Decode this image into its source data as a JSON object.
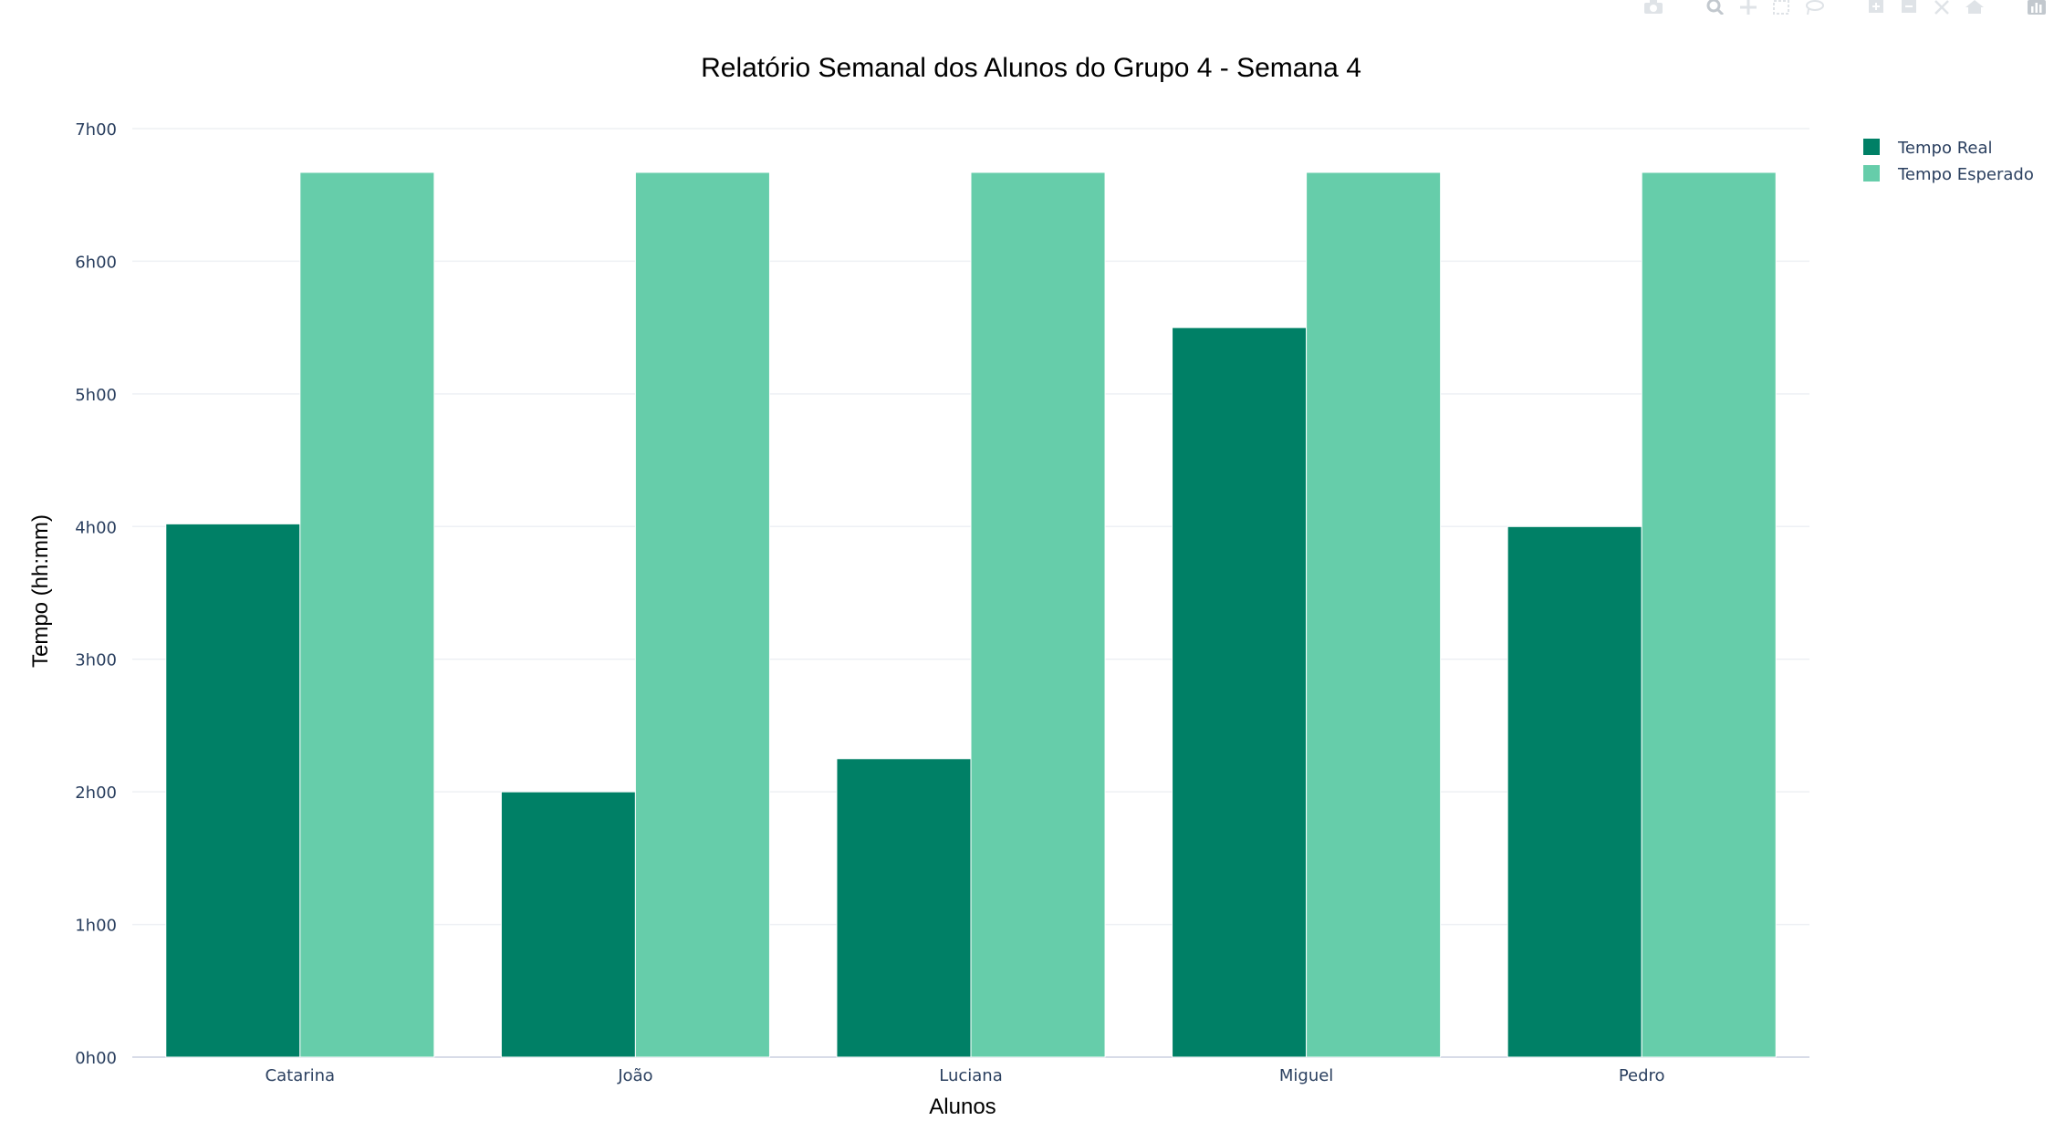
{
  "chart_data": {
    "type": "bar",
    "title": "Relatório Semanal dos Alunos do Grupo 4 - Semana 4",
    "xlabel": "Alunos",
    "ylabel": "Tempo (hh:mm)",
    "categories": [
      "Catarina",
      "João",
      "Luciana",
      "Miguel",
      "Pedro"
    ],
    "series": [
      {
        "name": "Tempo Real",
        "color": "#008066",
        "values": [
          4.02,
          2.0,
          2.25,
          5.5,
          4.0
        ]
      },
      {
        "name": "Tempo Esperado",
        "color": "#66cdaa",
        "values": [
          6.67,
          6.67,
          6.67,
          6.67,
          6.67
        ]
      }
    ],
    "y_ticks": [
      0,
      1,
      2,
      3,
      4,
      5,
      6,
      7
    ],
    "y_tick_labels": [
      "0h00",
      "1h00",
      "2h00",
      "3h00",
      "4h00",
      "5h00",
      "6h00",
      "7h00"
    ],
    "ylim": [
      0,
      7
    ],
    "grid": true,
    "legend_position": "top-right"
  },
  "modebar": {
    "icons": [
      "camera-icon",
      "zoom-icon",
      "pan-icon",
      "box-select-icon",
      "lasso-select-icon",
      "zoom-in-icon",
      "zoom-out-icon",
      "autoscale-icon",
      "reset-axes-icon",
      "plotly-logo-icon"
    ]
  }
}
